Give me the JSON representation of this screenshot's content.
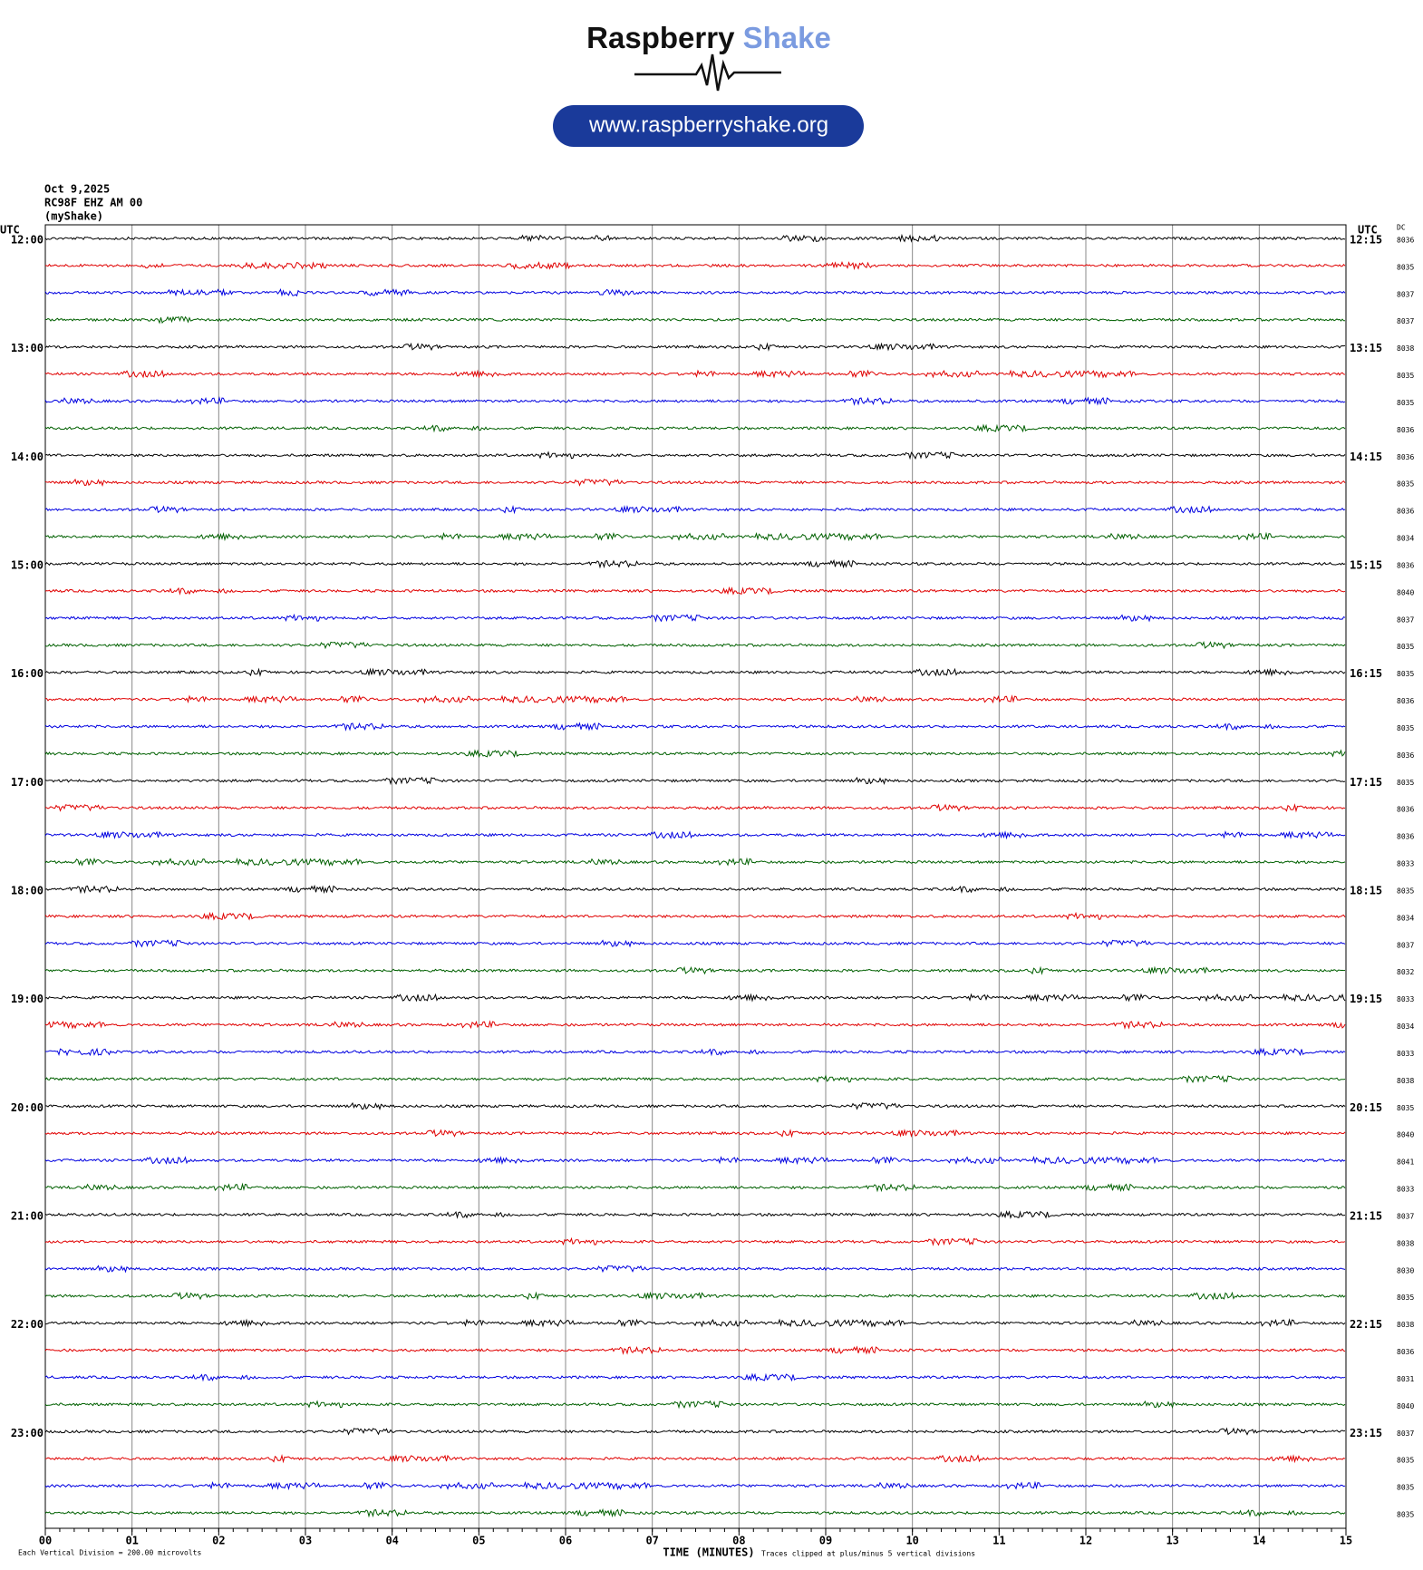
{
  "header": {
    "logo_word_1": "Raspberry",
    "logo_word_2": "Shake",
    "url": "www.raspberryshake.org",
    "date": "Oct 9,2025",
    "station": "RC98F EHZ AM 00",
    "network": "(myShake)"
  },
  "chart_data": {
    "type": "helicorder",
    "left_axis_title": "UTC",
    "right_axis_title": "UTC",
    "dc_title": "DC",
    "left_labels": [
      "12:00",
      null,
      null,
      null,
      "13:00",
      null,
      null,
      null,
      "14:00",
      null,
      null,
      null,
      "15:00",
      null,
      null,
      null,
      "16:00",
      null,
      null,
      null,
      "17:00",
      null,
      null,
      null,
      "18:00",
      null,
      null,
      null,
      "19:00",
      null,
      null,
      null,
      "20:00",
      null,
      null,
      null,
      "21:00",
      null,
      null,
      null,
      "22:00",
      null,
      null,
      null,
      "23:00",
      null,
      null,
      null
    ],
    "right_labels": [
      "12:15",
      null,
      null,
      null,
      "13:15",
      null,
      null,
      null,
      "14:15",
      null,
      null,
      null,
      "15:15",
      null,
      null,
      null,
      "16:15",
      null,
      null,
      null,
      "17:15",
      null,
      null,
      null,
      "18:15",
      null,
      null,
      null,
      "19:15",
      null,
      null,
      null,
      "20:15",
      null,
      null,
      null,
      "21:15",
      null,
      null,
      null,
      "22:15",
      null,
      null,
      null,
      "23:15",
      null,
      null,
      null
    ],
    "dc_values": [
      8036,
      8035,
      8037,
      8037,
      8038,
      8035,
      8035,
      8036,
      8036,
      8035,
      8036,
      8034,
      8036,
      8040,
      8037,
      8035,
      8035,
      8036,
      8035,
      8036,
      8035,
      8036,
      8036,
      8033,
      8035,
      8034,
      8037,
      8032,
      8033,
      8034,
      8033,
      8038,
      8035,
      8040,
      8041,
      8033,
      8037,
      8038,
      8030,
      8035,
      8038,
      8036,
      8031,
      8040,
      8037,
      8035,
      8035,
      8035
    ],
    "trace_colors": [
      "#000000",
      "#e00000",
      "#0000e0",
      "#006000"
    ],
    "xlim": [
      0,
      15
    ],
    "xticks": [
      {
        "value": 0,
        "label": "00"
      },
      {
        "value": 1,
        "label": "01"
      },
      {
        "value": 2,
        "label": "02"
      },
      {
        "value": 3,
        "label": "03"
      },
      {
        "value": 4,
        "label": "04"
      },
      {
        "value": 5,
        "label": "05"
      },
      {
        "value": 6,
        "label": "06"
      },
      {
        "value": 7,
        "label": "07"
      },
      {
        "value": 8,
        "label": "08"
      },
      {
        "value": 9,
        "label": "09"
      },
      {
        "value": 10,
        "label": "10"
      },
      {
        "value": 11,
        "label": "11"
      },
      {
        "value": 12,
        "label": "12"
      },
      {
        "value": 13,
        "label": "13"
      },
      {
        "value": 14,
        "label": "14"
      },
      {
        "value": 15,
        "label": "15"
      }
    ],
    "grid": true,
    "xlabel": "TIME (MINUTES)",
    "scale_note": "Each Vertical Division =  200.00 microvolts",
    "clip_note": "Traces clipped at plus/minus 5 vertical divisions"
  }
}
